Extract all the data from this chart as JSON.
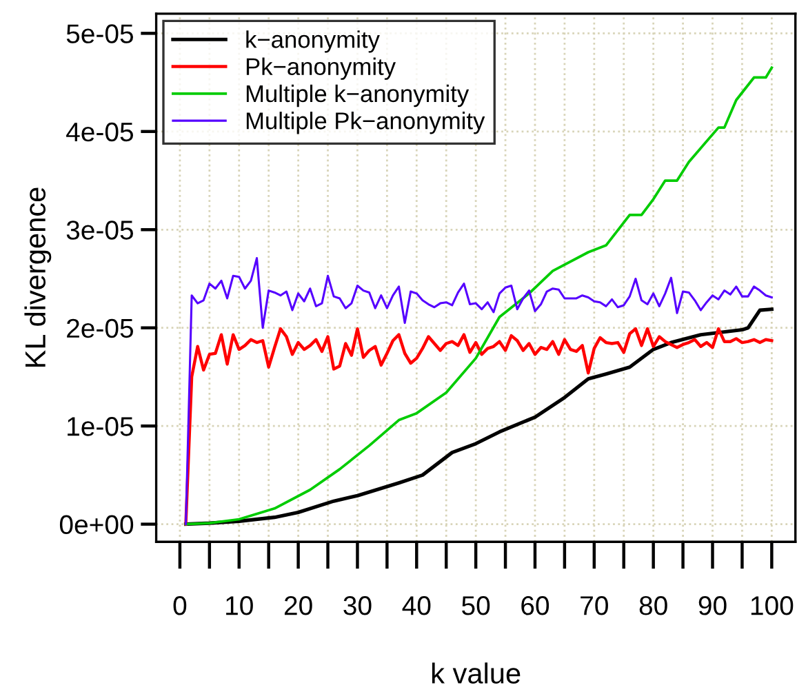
{
  "chart_data": {
    "type": "line",
    "xlabel": "k value",
    "ylabel": "KL divergence",
    "x": [
      1,
      2,
      3,
      4,
      5,
      6,
      7,
      8,
      9,
      10,
      11,
      12,
      13,
      14,
      15,
      16,
      17,
      18,
      19,
      20,
      21,
      22,
      23,
      24,
      25,
      26,
      27,
      28,
      29,
      30,
      31,
      32,
      33,
      34,
      35,
      36,
      37,
      38,
      39,
      40,
      41,
      42,
      43,
      44,
      45,
      46,
      47,
      48,
      49,
      50,
      51,
      52,
      53,
      54,
      55,
      56,
      57,
      58,
      59,
      60,
      61,
      62,
      63,
      64,
      65,
      66,
      67,
      68,
      69,
      70,
      71,
      72,
      73,
      74,
      75,
      76,
      77,
      78,
      79,
      80,
      81,
      82,
      83,
      84,
      85,
      86,
      87,
      88,
      89,
      90,
      91,
      92,
      93,
      94,
      95,
      96,
      97,
      98,
      99,
      100
    ],
    "xlim": [
      -4,
      104
    ],
    "ylim": [
      -1.8e-06,
      5.2e-05
    ],
    "xticks": [
      0,
      {
        "value": 5,
        "label": null
      },
      10,
      {
        "value": 15,
        "label": null
      },
      20,
      {
        "value": 25,
        "label": null
      },
      30,
      {
        "value": 35,
        "label": null
      },
      40,
      {
        "value": 45,
        "label": null
      },
      50,
      {
        "value": 55,
        "label": null
      },
      60,
      {
        "value": 65,
        "label": null
      },
      70,
      {
        "value": 75,
        "label": null
      },
      80,
      {
        "value": 85,
        "label": null
      },
      90,
      {
        "value": 95,
        "label": null
      },
      100
    ],
    "yticks": [
      {
        "value": 0,
        "label": "0e+00"
      },
      {
        "value": 1e-05,
        "label": "1e-05"
      },
      {
        "value": 2e-05,
        "label": "2e-05"
      },
      {
        "value": 3e-05,
        "label": "3e-05"
      },
      {
        "value": 4e-05,
        "label": "4e-05"
      },
      {
        "value": 5e-05,
        "label": "5e-05"
      }
    ],
    "grid": true,
    "legend": "top left",
    "line_style": "solid",
    "marker": "none",
    "series": [
      {
        "name": "k−anonymity",
        "color": "#000000",
        "x": [
          1,
          5,
          10,
          16,
          20,
          26,
          30,
          37,
          41,
          46,
          50,
          54,
          60,
          65,
          69,
          72,
          76,
          80,
          83,
          88,
          95,
          96,
          98,
          100
        ],
        "values": [
          0,
          1e-07,
          3e-07,
          7e-07,
          1.2e-06,
          2.35e-06,
          2.9e-06,
          4.2e-06,
          5e-06,
          7.3e-06,
          8.2e-06,
          9.4e-06,
          1.09e-05,
          1.29e-05,
          1.48e-05,
          1.53e-05,
          1.6e-05,
          1.78e-05,
          1.85e-05,
          1.93e-05,
          1.98e-05,
          2e-05,
          2.18e-05,
          2.19e-05
        ]
      },
      {
        "name": "Pk−anonymity",
        "color": "#ff0000",
        "values": [
          0,
          1.5e-05,
          1.81e-05,
          1.57e-05,
          1.73e-05,
          1.74e-05,
          1.93e-05,
          1.63e-05,
          1.93e-05,
          1.78e-05,
          1.82e-05,
          1.88e-05,
          1.85e-05,
          1.87e-05,
          1.6e-05,
          1.8e-05,
          1.99e-05,
          1.91e-05,
          1.73e-05,
          1.85e-05,
          1.78e-05,
          1.82e-05,
          1.88e-05,
          1.76e-05,
          1.91e-05,
          1.58e-05,
          1.61e-05,
          1.84e-05,
          1.72e-05,
          1.99e-05,
          1.7e-05,
          1.77e-05,
          1.81e-05,
          1.62e-05,
          1.74e-05,
          1.87e-05,
          1.93e-05,
          1.74e-05,
          1.64e-05,
          1.69e-05,
          1.79e-05,
          1.91e-05,
          1.84e-05,
          1.77e-05,
          1.84e-05,
          1.86e-05,
          1.82e-05,
          1.93e-05,
          1.75e-05,
          1.85e-05,
          1.73e-05,
          1.79e-05,
          1.81e-05,
          1.86e-05,
          1.77e-05,
          1.92e-05,
          1.87e-05,
          1.77e-05,
          1.84e-05,
          1.73e-05,
          1.8e-05,
          1.78e-05,
          1.86e-05,
          1.73e-05,
          1.88e-05,
          1.78e-05,
          1.76e-05,
          1.82e-05,
          1.54e-05,
          1.79e-05,
          1.9e-05,
          1.85e-05,
          1.84e-05,
          1.85e-05,
          1.75e-05,
          1.94e-05,
          1.99e-05,
          1.82e-05,
          1.99e-05,
          1.81e-05,
          1.91e-05,
          1.86e-05,
          1.83e-05,
          1.8e-05,
          1.83e-05,
          1.85e-05,
          1.88e-05,
          1.81e-05,
          1.85e-05,
          1.8e-05,
          1.99e-05,
          1.86e-05,
          1.86e-05,
          1.89e-05,
          1.85e-05,
          1.86e-05,
          1.88e-05,
          1.85e-05,
          1.88e-05,
          1.87e-05
        ]
      },
      {
        "name": "Multiple k−anonymity",
        "color": "#00cc00",
        "x": [
          1,
          5,
          10,
          16,
          22,
          27,
          32,
          37,
          40,
          45,
          50,
          54,
          59,
          63,
          69,
          72,
          76,
          78,
          80,
          82,
          84,
          86,
          91,
          92,
          94,
          97,
          99,
          100
        ],
        "values": [
          0,
          1e-07,
          5e-07,
          1.6e-06,
          3.5e-06,
          5.6e-06,
          8e-06,
          1.06e-05,
          1.13e-05,
          1.34e-05,
          1.69e-05,
          2.11e-05,
          2.35e-05,
          2.58e-05,
          2.77e-05,
          2.84e-05,
          3.15e-05,
          3.15e-05,
          3.31e-05,
          3.5e-05,
          3.5e-05,
          3.69e-05,
          4.04e-05,
          4.04e-05,
          4.32e-05,
          4.55e-05,
          4.55e-05,
          4.65e-05
        ]
      },
      {
        "name": "Multiple Pk−anonymity",
        "color": "#5500ff",
        "values": [
          0,
          2.33e-05,
          2.25e-05,
          2.28e-05,
          2.45e-05,
          2.4e-05,
          2.48e-05,
          2.3e-05,
          2.53e-05,
          2.52e-05,
          2.4e-05,
          2.48e-05,
          2.71e-05,
          2e-05,
          2.38e-05,
          2.36e-05,
          2.33e-05,
          2.37e-05,
          2.18e-05,
          2.35e-05,
          2.27e-05,
          2.4e-05,
          2.22e-05,
          2.25e-05,
          2.53e-05,
          2.32e-05,
          2.3e-05,
          2.2e-05,
          2.25e-05,
          2.43e-05,
          2.38e-05,
          2.36e-05,
          2.2e-05,
          2.33e-05,
          2.2e-05,
          2.33e-05,
          2.42e-05,
          2.05e-05,
          2.37e-05,
          2.35e-05,
          2.28e-05,
          2.24e-05,
          2.21e-05,
          2.25e-05,
          2.26e-05,
          2.23e-05,
          2.36e-05,
          2.45e-05,
          2.24e-05,
          2.25e-05,
          2.19e-05,
          2.26e-05,
          2.16e-05,
          2.35e-05,
          2.41e-05,
          2.43e-05,
          2.19e-05,
          2.3e-05,
          2.38e-05,
          2.17e-05,
          2.24e-05,
          2.37e-05,
          2.4e-05,
          2.39e-05,
          2.3e-05,
          2.3e-05,
          2.3e-05,
          2.33e-05,
          2.31e-05,
          2.27e-05,
          2.26e-05,
          2.22e-05,
          2.29e-05,
          2.21e-05,
          2.23e-05,
          2.32e-05,
          2.5e-05,
          2.28e-05,
          2.24e-05,
          2.35e-05,
          2.22e-05,
          2.35e-05,
          2.51e-05,
          2.15e-05,
          2.37e-05,
          2.36e-05,
          2.28e-05,
          2.18e-05,
          2.26e-05,
          2.33e-05,
          2.29e-05,
          2.38e-05,
          2.34e-05,
          2.42e-05,
          2.32e-05,
          2.32e-05,
          2.42e-05,
          2.38e-05,
          2.33e-05,
          2.31e-05
        ]
      }
    ]
  }
}
